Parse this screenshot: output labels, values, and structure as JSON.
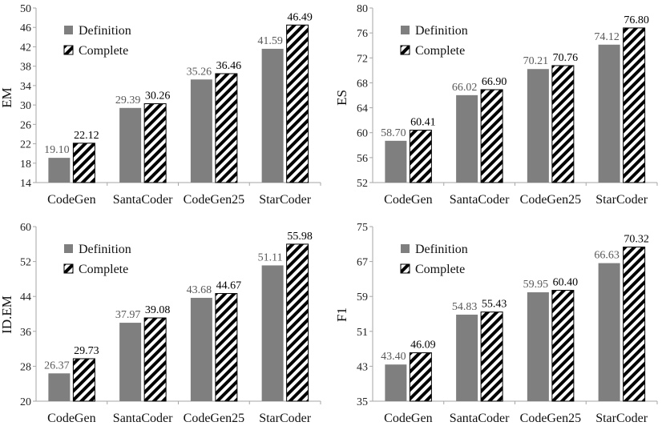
{
  "colors": {
    "definition": "#7f7f7f",
    "complete_stroke": "#000000",
    "axis": "#a6a6a6"
  },
  "chart_data": [
    {
      "type": "bar",
      "ylabel": "EM",
      "ylim": [
        14,
        50
      ],
      "yticks": [
        14,
        18,
        22,
        26,
        30,
        34,
        38,
        42,
        46,
        50
      ],
      "categories": [
        "CodeGen",
        "SantaCoder",
        "CodeGen25",
        "StarCoder"
      ],
      "series": [
        {
          "name": "Definition",
          "values": [
            19.1,
            29.39,
            35.26,
            41.59
          ],
          "labels": [
            "19.10",
            "29.39",
            "35.26",
            "41.59"
          ]
        },
        {
          "name": "Complete",
          "values": [
            22.12,
            30.26,
            36.46,
            46.49
          ],
          "labels": [
            "22.12",
            "30.26",
            "36.46",
            "46.49"
          ]
        }
      ],
      "legend": "top-left",
      "grid": false
    },
    {
      "type": "bar",
      "ylabel": "ES",
      "ylim": [
        52,
        80
      ],
      "yticks": [
        52,
        56,
        60,
        64,
        68,
        72,
        76,
        80
      ],
      "categories": [
        "CodeGen",
        "SantaCoder",
        "CodeGen25",
        "StarCoder"
      ],
      "series": [
        {
          "name": "Definition",
          "values": [
            58.7,
            66.02,
            70.21,
            74.12
          ],
          "labels": [
            "58.70",
            "66.02",
            "70.21",
            "74.12"
          ]
        },
        {
          "name": "Complete",
          "values": [
            60.41,
            66.9,
            70.76,
            76.8
          ],
          "labels": [
            "60.41",
            "66.90",
            "70.76",
            "76.80"
          ]
        }
      ],
      "legend": "top-left",
      "grid": false
    },
    {
      "type": "bar",
      "ylabel": "ID.EM",
      "ylim": [
        20,
        60
      ],
      "yticks": [
        20,
        28,
        36,
        44,
        52,
        60
      ],
      "categories": [
        "CodeGen",
        "SantaCoder",
        "CodeGen25",
        "StarCoder"
      ],
      "series": [
        {
          "name": "Definition",
          "values": [
            26.37,
            37.97,
            43.68,
            51.11
          ],
          "labels": [
            "26.37",
            "37.97",
            "43.68",
            "51.11"
          ]
        },
        {
          "name": "Complete",
          "values": [
            29.73,
            39.08,
            44.67,
            55.98
          ],
          "labels": [
            "29.73",
            "39.08",
            "44.67",
            "55.98"
          ]
        }
      ],
      "legend": "top-left",
      "grid": false
    },
    {
      "type": "bar",
      "ylabel": "F1",
      "ylim": [
        35,
        75
      ],
      "yticks": [
        35,
        43,
        51,
        59,
        67,
        75
      ],
      "categories": [
        "CodeGen",
        "SantaCoder",
        "CodeGen25",
        "StarCoder"
      ],
      "series": [
        {
          "name": "Definition",
          "values": [
            43.4,
            54.83,
            59.95,
            66.63
          ],
          "labels": [
            "43.40",
            "54.83",
            "59.95",
            "66.63"
          ]
        },
        {
          "name": "Complete",
          "values": [
            46.09,
            55.43,
            60.4,
            70.32
          ],
          "labels": [
            "46.09",
            "55.43",
            "60.40",
            "70.32"
          ]
        }
      ],
      "legend": "top-left",
      "grid": false
    }
  ]
}
